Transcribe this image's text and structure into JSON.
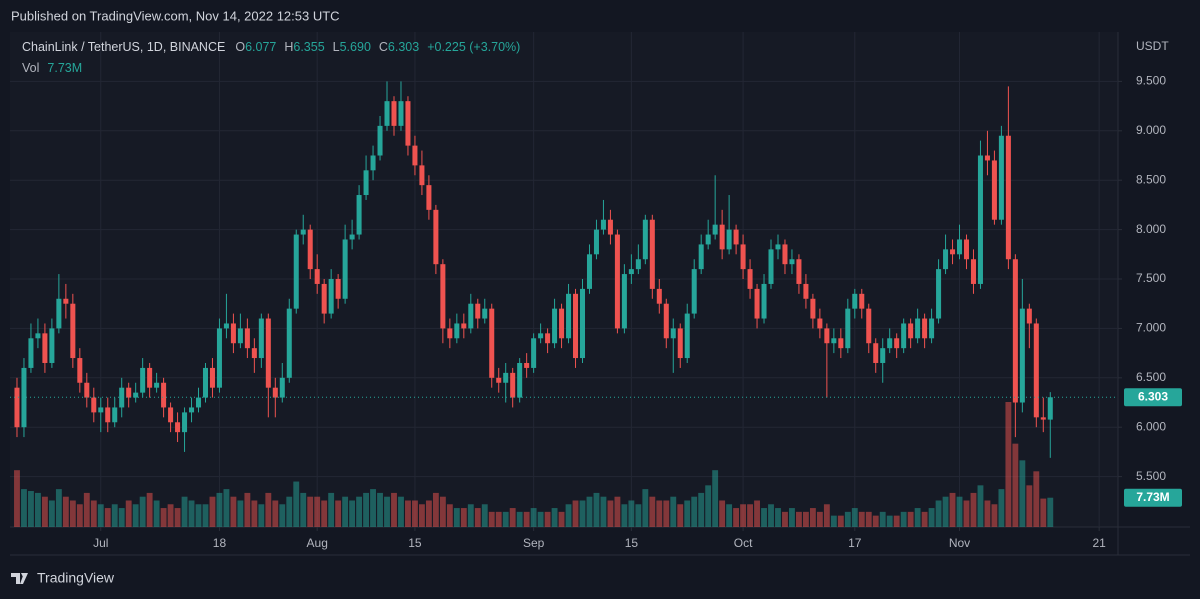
{
  "header": {
    "published": "Published on TradingView.com, Nov 14, 2022 12:53 UTC",
    "brand": "TradingView"
  },
  "chart_data": {
    "type": "candlestick",
    "title": "ChainLink / TetherUS, 1D, BINANCE",
    "legend": {
      "open_label": "O",
      "open": "6.077",
      "high_label": "H",
      "high": "6.355",
      "low_label": "L",
      "low": "5.690",
      "close_label": "C",
      "close": "6.303",
      "change": "+0.225 (+3.70%)",
      "volume_label": "Vol",
      "volume": "7.73M"
    },
    "y_axis_label": "USDT",
    "last_price_label": "6.303",
    "last_volume_label": "7.73M",
    "up_color": "#26a69a",
    "down_color": "#ef5350",
    "grid": true,
    "xlim": [
      -13,
      145.7
    ],
    "xticks": [
      {
        "value": 0,
        "label": "Jul"
      },
      {
        "value": 17,
        "label": "18"
      },
      {
        "value": 31,
        "label": "Aug"
      },
      {
        "value": 45,
        "label": "15"
      },
      {
        "value": 62,
        "label": "Sep"
      },
      {
        "value": 76,
        "label": "15"
      },
      {
        "value": 92,
        "label": "Oct"
      },
      {
        "value": 108,
        "label": "17"
      },
      {
        "value": 123,
        "label": "Nov"
      },
      {
        "value": 143,
        "label": "21"
      }
    ],
    "ylim": [
      4.99,
      10.0
    ],
    "yticks": [
      {
        "value": 5.5,
        "label": "5.500"
      },
      {
        "value": 6,
        "label": "6.000"
      },
      {
        "value": 6.5,
        "label": "6.500"
      },
      {
        "value": 7,
        "label": "7.000"
      },
      {
        "value": 7.5,
        "label": "7.500"
      },
      {
        "value": 8,
        "label": "8.000"
      },
      {
        "value": 8.5,
        "label": "8.500"
      },
      {
        "value": 9,
        "label": "9.000"
      },
      {
        "value": 9.5,
        "label": "9.500"
      }
    ],
    "x": [
      -12,
      -11,
      -10,
      -9,
      -8,
      -7,
      -6,
      -5,
      -4,
      -3,
      -2,
      -1,
      0,
      1,
      2,
      3,
      4,
      5,
      6,
      7,
      8,
      9,
      10,
      11,
      12,
      13,
      14,
      15,
      16,
      17,
      18,
      19,
      20,
      21,
      22,
      23,
      24,
      25,
      26,
      27,
      28,
      29,
      30,
      31,
      32,
      33,
      34,
      35,
      36,
      37,
      38,
      39,
      40,
      41,
      42,
      43,
      44,
      45,
      46,
      47,
      48,
      49,
      50,
      51,
      52,
      53,
      54,
      55,
      56,
      57,
      58,
      59,
      60,
      61,
      62,
      63,
      64,
      65,
      66,
      67,
      68,
      69,
      70,
      71,
      72,
      73,
      74,
      75,
      76,
      77,
      78,
      79,
      80,
      81,
      82,
      83,
      84,
      85,
      86,
      87,
      88,
      89,
      90,
      91,
      92,
      93,
      94,
      95,
      96,
      97,
      98,
      99,
      100,
      101,
      102,
      103,
      104,
      105,
      106,
      107,
      108,
      109,
      110,
      111,
      112,
      113,
      114,
      115,
      116,
      117,
      118,
      119,
      120,
      121,
      122,
      123,
      124,
      125,
      126,
      127,
      128,
      129,
      130,
      131,
      132,
      133,
      134,
      135,
      136
    ],
    "open": [
      6.4,
      6.0,
      6.6,
      6.9,
      6.95,
      6.65,
      7.0,
      7.3,
      7.25,
      6.7,
      6.45,
      6.3,
      6.15,
      6.2,
      6.05,
      6.2,
      6.4,
      6.3,
      6.35,
      6.6,
      6.4,
      6.45,
      6.2,
      6.05,
      5.95,
      6.15,
      6.2,
      6.3,
      6.6,
      6.4,
      7.0,
      7.05,
      6.85,
      7.0,
      6.8,
      6.7,
      7.1,
      6.4,
      6.3,
      6.5,
      7.2,
      7.95,
      8.0,
      7.6,
      7.45,
      7.15,
      7.5,
      7.3,
      7.9,
      7.95,
      8.35,
      8.6,
      8.75,
      9.05,
      9.3,
      9.05,
      9.3,
      8.85,
      8.65,
      8.45,
      8.2,
      7.65,
      7.0,
      6.9,
      7.05,
      7.0,
      7.25,
      7.1,
      7.2,
      6.5,
      6.45,
      6.55,
      6.3,
      6.65,
      6.6,
      6.9,
      6.95,
      6.85,
      7.2,
      6.9,
      7.35,
      6.7,
      7.4,
      7.75,
      8.0,
      8.1,
      7.95,
      7.0,
      7.55,
      7.6,
      7.7,
      8.1,
      7.4,
      7.25,
      6.9,
      7.0,
      6.7,
      7.15,
      7.6,
      7.85,
      7.95,
      8.05,
      7.8,
      8.0,
      7.85,
      7.6,
      7.4,
      7.1,
      7.45,
      7.8,
      7.85,
      7.65,
      7.7,
      7.45,
      7.3,
      7.1,
      7.0,
      6.85,
      6.9,
      6.8,
      7.2,
      7.35,
      7.2,
      6.85,
      6.65,
      6.8,
      6.9,
      6.8,
      7.05,
      6.9,
      7.1,
      6.9,
      7.1,
      7.6,
      7.8,
      7.75,
      7.9,
      7.7,
      7.45,
      8.75,
      8.7,
      8.1,
      8.95,
      7.7,
      6.25,
      7.2,
      7.05,
      6.1,
      6.077
    ],
    "high": [
      6.5,
      6.7,
      7.05,
      7.1,
      7.05,
      7.1,
      7.55,
      7.45,
      7.35,
      6.8,
      6.55,
      6.4,
      6.3,
      6.3,
      6.3,
      6.5,
      6.45,
      6.45,
      6.7,
      6.65,
      6.55,
      6.5,
      6.25,
      6.15,
      6.2,
      6.3,
      6.4,
      6.65,
      6.7,
      7.1,
      7.35,
      7.15,
      7.15,
      7.1,
      6.9,
      7.15,
      7.15,
      6.5,
      6.65,
      7.3,
      8.0,
      8.15,
      8.05,
      7.75,
      7.5,
      7.6,
      7.55,
      8.05,
      8.1,
      8.45,
      8.75,
      8.85,
      9.15,
      9.5,
      9.35,
      9.5,
      9.35,
      8.95,
      8.8,
      8.55,
      8.25,
      7.7,
      7.1,
      7.15,
      7.15,
      7.35,
      7.3,
      7.3,
      7.25,
      6.6,
      6.65,
      6.6,
      6.7,
      6.75,
      6.95,
      7.05,
      7.0,
      7.3,
      7.25,
      7.45,
      7.4,
      7.5,
      7.85,
      8.1,
      8.3,
      8.2,
      8.0,
      7.65,
      7.75,
      7.85,
      8.15,
      8.15,
      7.5,
      7.3,
      7.1,
      7.05,
      7.25,
      7.7,
      7.95,
      8.1,
      8.55,
      8.2,
      8.35,
      8.05,
      7.95,
      7.7,
      7.45,
      7.55,
      7.9,
      7.95,
      7.9,
      7.8,
      7.75,
      7.55,
      7.35,
      7.2,
      7.05,
      7.0,
      7.0,
      7.3,
      7.4,
      7.4,
      7.25,
      6.9,
      6.9,
      7.0,
      6.95,
      7.1,
      7.1,
      7.2,
      7.15,
      7.2,
      7.7,
      7.95,
      7.9,
      8.05,
      7.95,
      7.8,
      8.9,
      9.0,
      8.8,
      9.05,
      9.45,
      7.75,
      7.5,
      7.25,
      7.1,
      6.3,
      6.355
    ],
    "low": [
      5.9,
      5.9,
      6.55,
      6.8,
      6.55,
      6.6,
      6.95,
      7.1,
      6.6,
      6.35,
      6.2,
      6.05,
      5.95,
      5.95,
      6.0,
      6.1,
      6.2,
      6.25,
      6.3,
      6.3,
      6.35,
      6.1,
      5.95,
      5.85,
      5.75,
      6.05,
      6.15,
      6.25,
      6.3,
      6.35,
      6.9,
      6.75,
      6.8,
      6.7,
      6.55,
      6.6,
      6.1,
      6.1,
      6.25,
      6.45,
      7.15,
      7.85,
      7.5,
      7.35,
      7.05,
      7.1,
      7.2,
      7.25,
      7.8,
      7.9,
      8.3,
      8.5,
      8.7,
      9.0,
      8.95,
      9.0,
      8.75,
      8.55,
      8.35,
      8.1,
      7.55,
      6.85,
      6.8,
      6.85,
      6.9,
      6.95,
      7.0,
      7.05,
      6.4,
      6.35,
      6.25,
      6.2,
      6.25,
      6.5,
      6.55,
      6.85,
      6.75,
      6.8,
      6.8,
      6.85,
      6.6,
      6.65,
      7.35,
      7.7,
      7.95,
      7.85,
      6.95,
      6.95,
      7.45,
      7.55,
      7.65,
      7.3,
      7.15,
      6.8,
      6.55,
      6.6,
      6.65,
      7.1,
      7.55,
      7.8,
      7.9,
      7.7,
      7.75,
      7.75,
      7.5,
      7.3,
      7.0,
      7.05,
      7.4,
      7.7,
      7.55,
      7.55,
      7.35,
      7.2,
      7.0,
      6.9,
      6.3,
      6.75,
      6.7,
      6.75,
      7.1,
      7.1,
      6.75,
      6.55,
      6.45,
      6.75,
      6.7,
      6.75,
      6.8,
      6.85,
      6.8,
      6.85,
      7.05,
      7.55,
      7.65,
      7.7,
      7.6,
      7.35,
      7.4,
      8.55,
      8.05,
      8.05,
      7.6,
      5.9,
      6.15,
      6.8,
      6.0,
      5.95,
      5.69
    ],
    "close": [
      6.0,
      6.6,
      6.9,
      6.95,
      6.65,
      7.0,
      7.3,
      7.25,
      6.7,
      6.45,
      6.3,
      6.15,
      6.2,
      6.05,
      6.2,
      6.4,
      6.3,
      6.35,
      6.6,
      6.4,
      6.45,
      6.2,
      6.05,
      5.95,
      6.15,
      6.2,
      6.3,
      6.6,
      6.4,
      7.0,
      7.05,
      6.85,
      7.0,
      6.8,
      6.7,
      7.1,
      6.4,
      6.3,
      6.5,
      7.2,
      7.95,
      8.0,
      7.6,
      7.45,
      7.15,
      7.5,
      7.3,
      7.9,
      7.95,
      8.35,
      8.6,
      8.75,
      9.05,
      9.3,
      9.05,
      9.3,
      8.85,
      8.65,
      8.45,
      8.2,
      7.65,
      7.0,
      6.9,
      7.05,
      7.0,
      7.25,
      7.1,
      7.2,
      6.5,
      6.45,
      6.55,
      6.3,
      6.65,
      6.6,
      6.9,
      6.95,
      6.85,
      7.2,
      6.9,
      7.35,
      6.7,
      7.4,
      7.75,
      8.0,
      8.1,
      7.95,
      7.0,
      7.55,
      7.6,
      7.7,
      8.1,
      7.4,
      7.25,
      6.9,
      7.0,
      6.7,
      7.15,
      7.6,
      7.85,
      7.95,
      8.05,
      7.8,
      8.0,
      7.85,
      7.6,
      7.4,
      7.1,
      7.45,
      7.8,
      7.85,
      7.65,
      7.7,
      7.45,
      7.3,
      7.1,
      7.0,
      6.85,
      6.9,
      6.8,
      7.2,
      7.35,
      7.2,
      6.85,
      6.65,
      6.8,
      6.9,
      6.8,
      7.05,
      6.9,
      7.1,
      6.9,
      7.1,
      7.6,
      7.8,
      7.75,
      7.9,
      7.7,
      7.45,
      8.75,
      8.7,
      8.1,
      8.95,
      7.7,
      6.25,
      7.2,
      7.05,
      6.1,
      6.077,
      6.303
    ],
    "volume": [
      15,
      10,
      9.5,
      9,
      8,
      7,
      10,
      8,
      7,
      6,
      9,
      7,
      6,
      5,
      6,
      5,
      7,
      6,
      8,
      9,
      7,
      5,
      6,
      5,
      8,
      7,
      6,
      6,
      8,
      9,
      10,
      8,
      7,
      9,
      7,
      6,
      9,
      7,
      6,
      8,
      12,
      9,
      8,
      8,
      7,
      9,
      7,
      8,
      7,
      8,
      9,
      10,
      9,
      8,
      9,
      8,
      7,
      7,
      6,
      7,
      9,
      8,
      6,
      5,
      5,
      6,
      5,
      6,
      4,
      4,
      4,
      5,
      4,
      4,
      5,
      4,
      4,
      5,
      4,
      6,
      7,
      7,
      8,
      9,
      8,
      7,
      8,
      6,
      7,
      6,
      10,
      8,
      7,
      7,
      8,
      6,
      7,
      8,
      9,
      11,
      15,
      7,
      6,
      5,
      6,
      6,
      7,
      5,
      6,
      5,
      4,
      5,
      4,
      4,
      5,
      4,
      6,
      3,
      3,
      4,
      5,
      4,
      4,
      3,
      4,
      3,
      3,
      4,
      4,
      5,
      4,
      5,
      7,
      8,
      9,
      8,
      7,
      9,
      11,
      7,
      6,
      10,
      33,
      22,
      17.6,
      11,
      14.7,
      7.5,
      7.73
    ]
  }
}
